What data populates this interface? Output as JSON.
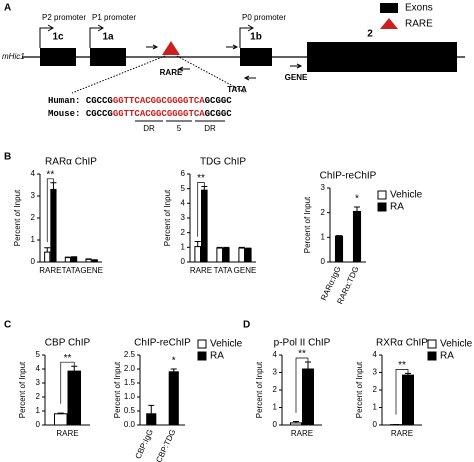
{
  "figure": {
    "panel_a": "A",
    "panel_b": "B",
    "panel_c": "C",
    "panel_d": "D",
    "legend_exons": "Exons",
    "legend_rare": "RARE",
    "gene": "mHic1",
    "promoters": [
      "P2 promoter",
      "P1 promoter",
      "P0 promoter"
    ],
    "exons": [
      "1c",
      "1a",
      "1b",
      "2"
    ],
    "rare_label": "RARE",
    "primers": [
      "TATA",
      "GENE"
    ],
    "human_label": "Human:",
    "human": [
      "CGCCG",
      "GGTTCACGGCGGGGTCA",
      "GCGGC"
    ],
    "mouse_label": "Mouse:",
    "mouse": [
      "CGCCG",
      "GGTTCACGGCGGGGTCA",
      "GCGGC"
    ],
    "motif": [
      "DR",
      "5",
      "DR"
    ]
  },
  "legends": [
    {
      "entries": [
        {
          "name": "Vehicle",
          "color": "#ffffff"
        },
        {
          "name": "RA",
          "color": "#000000"
        }
      ]
    },
    {
      "entries": [
        {
          "name": "Vehicle",
          "color": "#ffffff"
        },
        {
          "name": "RA",
          "color": "#000000"
        }
      ]
    },
    {
      "entries": [
        {
          "name": "Vehicle",
          "color": "#ffffff"
        },
        {
          "name": "RA",
          "color": "#000000"
        }
      ]
    }
  ],
  "chart_data": [
    {
      "type": "bar",
      "title": "RARα ChIP",
      "y_label": "Percent of Input",
      "categories": [
        "RARE",
        "TATA",
        "GENE"
      ],
      "series": [
        {
          "name": "Vehicle",
          "color": "#ffffff",
          "values": [
            0.45,
            0.2,
            0.12
          ],
          "errors": [
            0.2,
            0.02,
            0.02
          ]
        },
        {
          "name": "RA",
          "color": "#000000",
          "values": [
            3.3,
            0.22,
            0.08
          ],
          "errors": [
            0.3,
            0.02,
            0.02
          ]
        }
      ],
      "ylim": [
        0,
        4
      ],
      "yticks": [
        0,
        1,
        2,
        3,
        4
      ],
      "annotation": "**"
    },
    {
      "type": "bar",
      "title": "TDG ChIP",
      "y_label": "Percent of Input",
      "categories": [
        "RARE",
        "TATA",
        "GENE"
      ],
      "series": [
        {
          "name": "Vehicle",
          "color": "#ffffff",
          "values": [
            1.05,
            0.95,
            0.95
          ],
          "errors": [
            0.35,
            0.05,
            0.05
          ]
        },
        {
          "name": "RA",
          "color": "#000000",
          "values": [
            4.9,
            0.95,
            0.9
          ],
          "errors": [
            0.25,
            0.05,
            0.05
          ]
        }
      ],
      "ylim": [
        0,
        6
      ],
      "yticks": [
        0,
        1,
        2,
        3,
        4,
        5,
        6
      ],
      "annotation": "**"
    },
    {
      "type": "bar",
      "title": "ChIP-reChIP",
      "y_label": "Percent of Input",
      "categories": [
        "RARα:IgG",
        "RARα:TDG"
      ],
      "series": [
        {
          "name": "RA",
          "color": "#000000",
          "values": [
            1.05,
            2.05
          ],
          "errors": [
            0.02,
            0.18
          ]
        }
      ],
      "ylim": [
        0,
        3
      ],
      "yticks": [
        0,
        1,
        2,
        3
      ],
      "annotation": "*",
      "rotate_labels": true
    },
    {
      "type": "bar",
      "title": "CBP ChIP",
      "y_label": "Percent of Input",
      "categories": [
        "RARE"
      ],
      "series": [
        {
          "name": "Vehicle",
          "color": "#ffffff",
          "values": [
            0.8
          ],
          "errors": [
            0.05
          ]
        },
        {
          "name": "RA",
          "color": "#000000",
          "values": [
            3.85
          ],
          "errors": [
            0.35
          ]
        }
      ],
      "ylim": [
        0,
        5
      ],
      "yticks": [
        0,
        1,
        2,
        3,
        4,
        5
      ],
      "annotation": "**"
    },
    {
      "type": "bar",
      "title": "ChIP-reChIP",
      "y_label": "Percent of Input",
      "categories": [
        "CBP:IgG",
        "CBP:TDG"
      ],
      "series": [
        {
          "name": "RA",
          "color": "#000000",
          "values": [
            0.4,
            1.9
          ],
          "errors": [
            0.3,
            0.1
          ]
        }
      ],
      "ylim": [
        0,
        2.5
      ],
      "yticks": [
        {
          "value": 0,
          "label": "0.0"
        },
        {
          "value": 0.5,
          "label": "0.5"
        },
        {
          "value": 1,
          "label": "1.0"
        },
        {
          "value": 1.5,
          "label": "1.5"
        },
        {
          "value": 2,
          "label": "2.0"
        },
        {
          "value": 2.5,
          "label": "2.5"
        }
      ],
      "annotation": "*",
      "rotate_labels": true
    },
    {
      "type": "bar",
      "title": "p-Pol II ChIP",
      "y_label": "Percent of Input",
      "categories": [
        "RARE"
      ],
      "series": [
        {
          "name": "Vehicle",
          "color": "#ffffff",
          "values": [
            0.12
          ],
          "errors": [
            0.08
          ]
        },
        {
          "name": "RA",
          "color": "#000000",
          "values": [
            3.2
          ],
          "errors": [
            0.4
          ]
        }
      ],
      "ylim": [
        0,
        4
      ],
      "yticks": [
        0,
        1,
        2,
        3,
        4
      ],
      "annotation": "**"
    },
    {
      "type": "bar",
      "title": "RXRα ChIP",
      "y_label": "Percent of Input",
      "categories": [
        "RARE"
      ],
      "series": [
        {
          "name": "Vehicle",
          "color": "#ffffff",
          "values": [
            0.02
          ],
          "errors": [
            0.01
          ]
        },
        {
          "name": "RA",
          "color": "#000000",
          "values": [
            2.85
          ],
          "errors": [
            0.1
          ]
        }
      ],
      "ylim": [
        0,
        4
      ],
      "yticks": [
        0,
        1,
        2,
        3,
        4
      ],
      "annotation": "**"
    }
  ]
}
